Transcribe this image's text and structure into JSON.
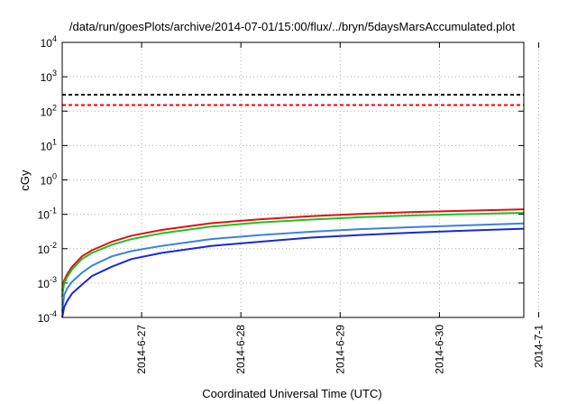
{
  "chart_data": {
    "type": "line",
    "title": "/data/run/goesPlots/archive/2014-07-01/15:00/flux/../bryn/5daysMarsAccumulated.plot",
    "xlabel": "Coordinated Universal Time (UTC)",
    "ylabel": "cGy",
    "y_scale": "log",
    "ylim": [
      0.0001,
      10000
    ],
    "xlim_days": [
      0,
      4.65
    ],
    "grid": true,
    "y_ticks": [
      {
        "base": "10",
        "exp": "-4"
      },
      {
        "base": "10",
        "exp": "-3"
      },
      {
        "base": "10",
        "exp": "-2"
      },
      {
        "base": "10",
        "exp": "-1"
      },
      {
        "base": "10",
        "exp": "0"
      },
      {
        "base": "10",
        "exp": "1"
      },
      {
        "base": "10",
        "exp": "2"
      },
      {
        "base": "10",
        "exp": "3"
      },
      {
        "base": "10",
        "exp": "4"
      }
    ],
    "x_ticks": [
      {
        "label": "2014-6-27",
        "day": 0.8
      },
      {
        "label": "2014-6-28",
        "day": 1.8
      },
      {
        "label": "2014-6-29",
        "day": 2.8
      },
      {
        "label": "2014-6-30",
        "day": 3.8
      },
      {
        "label": "2014-7-1",
        "day": 4.8
      }
    ],
    "reference_lines": [
      {
        "value": 300,
        "color": "#000000",
        "style": "dashed"
      },
      {
        "value": 150,
        "color": "#ff0000",
        "style": "dashed"
      }
    ],
    "series": [
      {
        "color": "#e01010",
        "x": [
          0,
          0.02,
          0.05,
          0.1,
          0.2,
          0.3,
          0.5,
          0.7,
          1.0,
          1.5,
          2.0,
          2.5,
          3.0,
          3.5,
          4.0,
          4.65
        ],
        "y": [
          0.0006,
          0.0012,
          0.0018,
          0.003,
          0.006,
          0.009,
          0.016,
          0.024,
          0.035,
          0.055,
          0.072,
          0.088,
          0.102,
          0.115,
          0.125,
          0.14
        ]
      },
      {
        "color": "#20c020",
        "x": [
          0,
          0.02,
          0.05,
          0.1,
          0.2,
          0.3,
          0.5,
          0.7,
          1.0,
          1.5,
          2.0,
          2.5,
          3.0,
          3.5,
          4.0,
          4.65
        ],
        "y": [
          0.0004,
          0.001,
          0.0015,
          0.0025,
          0.005,
          0.0075,
          0.013,
          0.019,
          0.028,
          0.044,
          0.058,
          0.07,
          0.082,
          0.092,
          0.1,
          0.11
        ]
      },
      {
        "color": "#3b82e0",
        "x": [
          0,
          0.02,
          0.05,
          0.1,
          0.2,
          0.3,
          0.5,
          0.7,
          1.0,
          1.5,
          2.0,
          2.5,
          3.0,
          3.5,
          4.0,
          4.65
        ],
        "y": [
          0.00015,
          0.00045,
          0.0007,
          0.0011,
          0.002,
          0.0032,
          0.006,
          0.0085,
          0.012,
          0.019,
          0.025,
          0.031,
          0.037,
          0.042,
          0.047,
          0.054
        ]
      },
      {
        "color": "#1a28d0",
        "x": [
          0,
          0.02,
          0.05,
          0.1,
          0.2,
          0.3,
          0.5,
          0.7,
          1.0,
          1.5,
          2.0,
          2.5,
          3.0,
          3.5,
          4.0,
          4.65
        ],
        "y": [
          0.0001,
          0.0002,
          0.0003,
          0.0005,
          0.0009,
          0.0016,
          0.003,
          0.005,
          0.0075,
          0.012,
          0.016,
          0.021,
          0.025,
          0.029,
          0.033,
          0.038
        ]
      }
    ]
  }
}
